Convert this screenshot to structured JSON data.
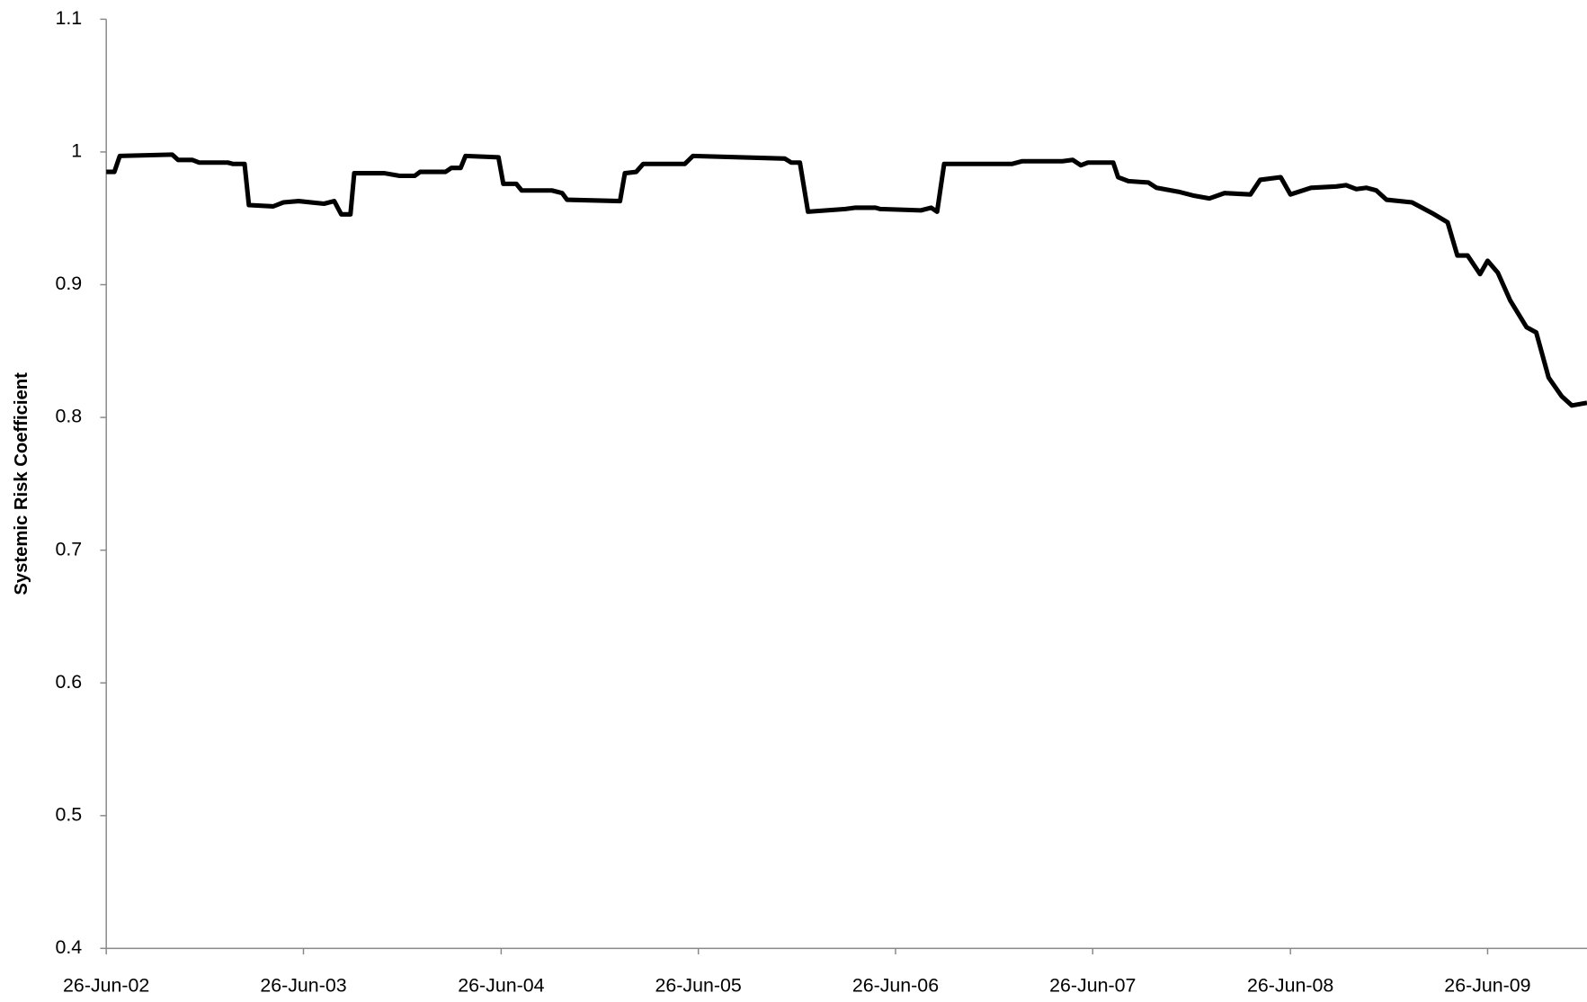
{
  "chart_data": {
    "type": "line",
    "y_label": "Systemic Risk Coefficient",
    "ylim": [
      0.4,
      1.1
    ],
    "yticks": [
      0.4,
      0.5,
      0.6,
      0.7,
      0.8,
      0.9,
      1,
      1.1
    ],
    "xlim": [
      "2002-06-26",
      "2009-12-27"
    ],
    "xticks": [
      {
        "value": "2002-06-26",
        "label": "26-Jun-02"
      },
      {
        "value": "2003-06-26",
        "label": "26-Jun-03"
      },
      {
        "value": "2004-06-26",
        "label": "26-Jun-04"
      },
      {
        "value": "2005-06-26",
        "label": "26-Jun-05"
      },
      {
        "value": "2006-06-26",
        "label": "26-Jun-06"
      },
      {
        "value": "2007-06-26",
        "label": "26-Jun-07"
      },
      {
        "value": "2008-06-26",
        "label": "26-Jun-08"
      },
      {
        "value": "2009-06-26",
        "label": "26-Jun-09"
      }
    ],
    "color": "#000000",
    "x": [
      "2002-06-26",
      "2002-07-11",
      "2002-07-21",
      "2002-10-26",
      "2002-11-06",
      "2002-12-02",
      "2002-12-15",
      "2003-02-06",
      "2003-02-15",
      "2003-03-09",
      "2003-03-17",
      "2003-05-01",
      "2003-05-20",
      "2003-06-17",
      "2003-08-03",
      "2003-08-22",
      "2003-09-04",
      "2003-09-21",
      "2003-09-28",
      "2003-11-23",
      "2003-12-21",
      "2004-01-18",
      "2004-01-28",
      "2004-03-15",
      "2004-03-26",
      "2004-04-12",
      "2004-04-21",
      "2004-06-21",
      "2004-06-30",
      "2004-07-24",
      "2004-08-03",
      "2004-09-28",
      "2004-10-17",
      "2004-10-26",
      "2005-02-01",
      "2005-02-10",
      "2005-03-03",
      "2005-03-16",
      "2005-06-01",
      "2005-06-16",
      "2005-12-03",
      "2005-12-15",
      "2005-12-31",
      "2006-01-15",
      "2006-03-25",
      "2006-04-13",
      "2006-05-20",
      "2006-05-29",
      "2006-08-12",
      "2006-08-31",
      "2006-09-11",
      "2006-09-24",
      "2007-01-28",
      "2007-02-15",
      "2007-05-01",
      "2007-05-20",
      "2007-06-04",
      "2007-06-17",
      "2007-08-03",
      "2007-08-12",
      "2007-08-31",
      "2007-10-07",
      "2007-10-22",
      "2007-12-02",
      "2007-12-31",
      "2008-01-28",
      "2008-02-25",
      "2008-04-13",
      "2008-05-01",
      "2008-06-08",
      "2008-06-26",
      "2008-08-03",
      "2008-09-19",
      "2008-10-07",
      "2008-10-26",
      "2008-11-14",
      "2008-12-02",
      "2008-12-21",
      "2009-02-06",
      "2009-03-15",
      "2009-04-13",
      "2009-05-01",
      "2009-05-20",
      "2009-06-12",
      "2009-06-26",
      "2009-07-15",
      "2009-08-07",
      "2009-09-06",
      "2009-09-24",
      "2009-10-17",
      "2009-11-10",
      "2009-11-29",
      "2009-12-27"
    ],
    "values": [
      0.985,
      0.985,
      0.997,
      0.998,
      0.994,
      0.994,
      0.992,
      0.992,
      0.991,
      0.991,
      0.96,
      0.959,
      0.962,
      0.963,
      0.961,
      0.963,
      0.953,
      0.953,
      0.984,
      0.984,
      0.982,
      0.982,
      0.985,
      0.985,
      0.988,
      0.988,
      0.997,
      0.996,
      0.976,
      0.976,
      0.971,
      0.971,
      0.969,
      0.964,
      0.963,
      0.984,
      0.985,
      0.991,
      0.991,
      0.997,
      0.995,
      0.992,
      0.992,
      0.955,
      0.957,
      0.958,
      0.958,
      0.957,
      0.956,
      0.958,
      0.955,
      0.991,
      0.991,
      0.993,
      0.993,
      0.994,
      0.99,
      0.992,
      0.992,
      0.981,
      0.978,
      0.977,
      0.973,
      0.97,
      0.967,
      0.965,
      0.969,
      0.968,
      0.979,
      0.981,
      0.968,
      0.973,
      0.974,
      0.975,
      0.972,
      0.973,
      0.971,
      0.964,
      0.962,
      0.954,
      0.947,
      0.922,
      0.922,
      0.908,
      0.918,
      0.909,
      0.888,
      0.868,
      0.864,
      0.83,
      0.816,
      0.809,
      0.811
    ]
  }
}
